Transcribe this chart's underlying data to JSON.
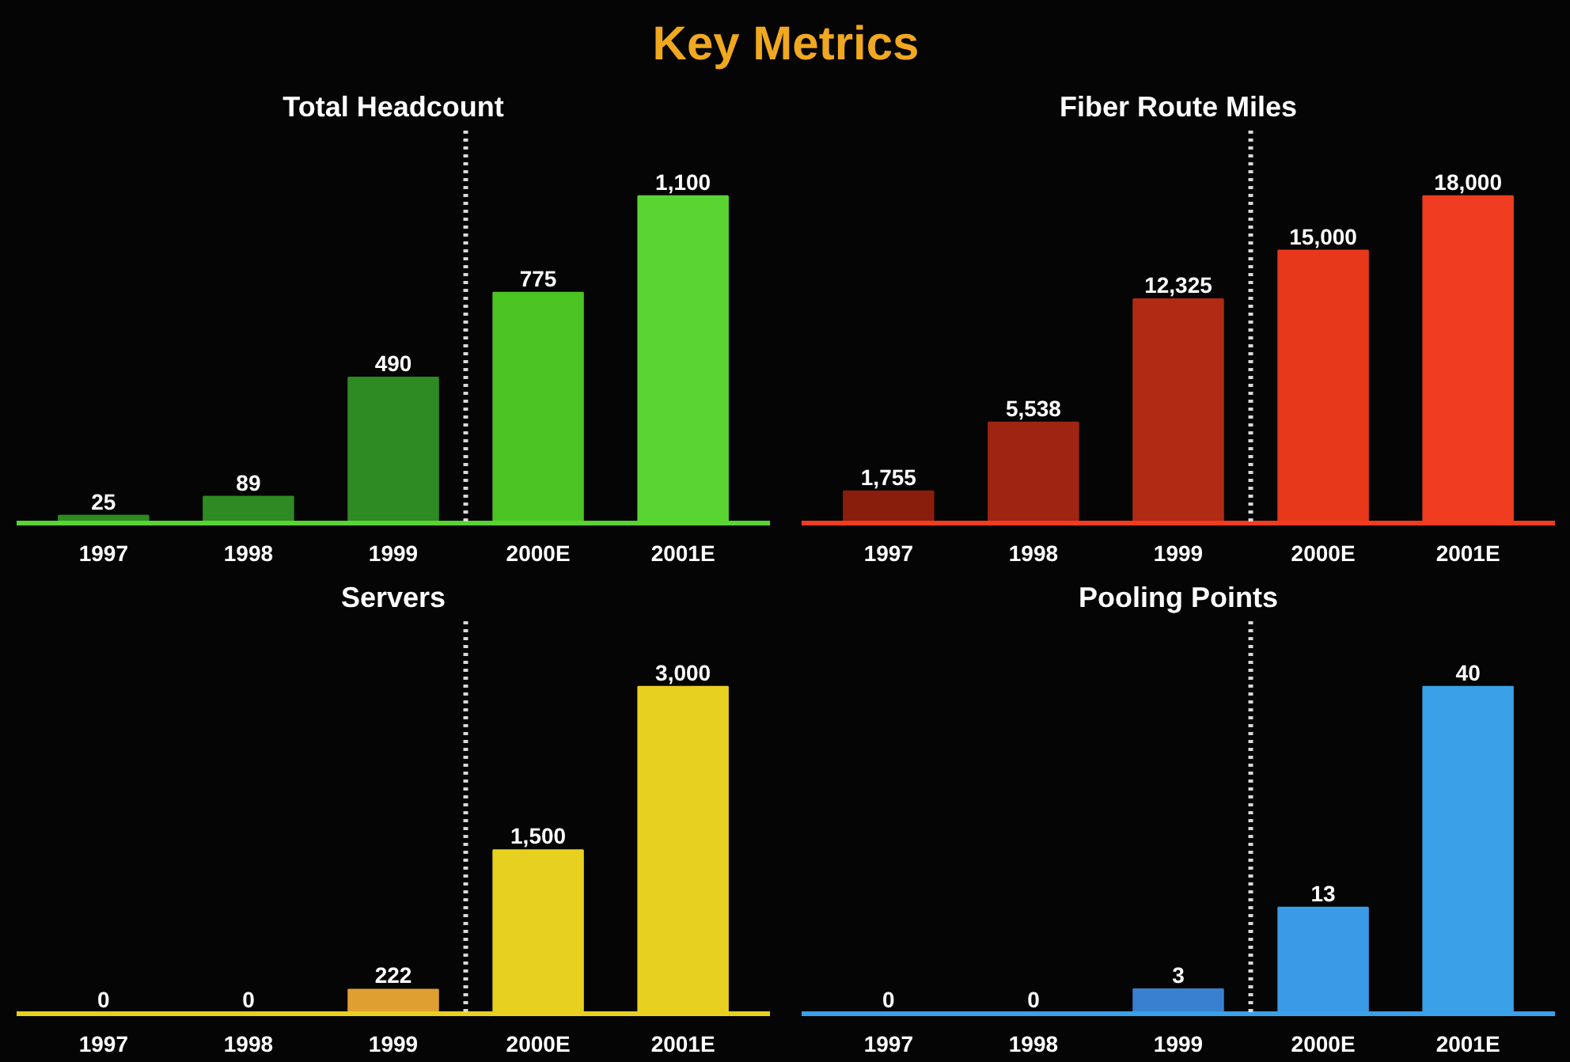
{
  "chart_data": [
    {
      "type": "other",
      "title": "Key Metrics"
    },
    {
      "type": "bar",
      "title": "Total Headcount",
      "categories": [
        "1997",
        "1998",
        "1999",
        "2000E",
        "2001E"
      ],
      "values": [
        25,
        89,
        490,
        775,
        1100
      ],
      "value_labels": [
        "25",
        "89",
        "490",
        "775",
        "1,100"
      ],
      "colors": [
        "#2e8a22",
        "#2e8a22",
        "#2e8a22",
        "#4cc424",
        "#5ad432"
      ]
    },
    {
      "type": "bar",
      "title": "Fiber Route Miles",
      "categories": [
        "1997",
        "1998",
        "1999",
        "2000E",
        "2001E"
      ],
      "values": [
        1755,
        5538,
        12325,
        15000,
        18000
      ],
      "value_labels": [
        "1,755",
        "5,538",
        "12,325",
        "15,000",
        "18,000"
      ],
      "colors": [
        "#8a1e0c",
        "#a02412",
        "#b02a14",
        "#e8381c",
        "#f03c20"
      ]
    },
    {
      "type": "bar",
      "title": "Servers",
      "categories": [
        "1997",
        "1998",
        "1999",
        "2000E",
        "2001E"
      ],
      "values": [
        0,
        0,
        222,
        1500,
        3000
      ],
      "value_labels": [
        "0",
        "0",
        "222",
        "1,500",
        "3,000"
      ],
      "colors": [
        "#e8d020",
        "#e8d020",
        "#e0a030",
        "#e8d020",
        "#e8d020"
      ]
    },
    {
      "type": "bar",
      "title": "Pooling Points",
      "categories": [
        "1997",
        "1998",
        "1999",
        "2000E",
        "2001E"
      ],
      "values": [
        0,
        0,
        3,
        13,
        40
      ],
      "value_labels": [
        "0",
        "0",
        "3",
        "13",
        "40"
      ],
      "colors": [
        "#3a80d0",
        "#3a80d0",
        "#3a80d0",
        "#3a9ae8",
        "#3aa0e8"
      ]
    }
  ]
}
